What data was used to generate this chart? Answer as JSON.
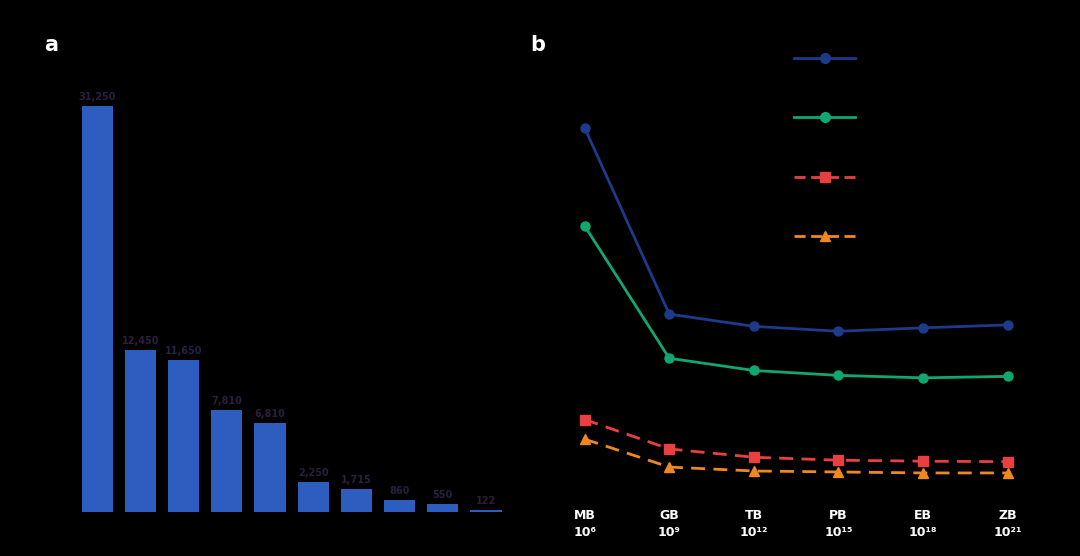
{
  "bar_values": [
    31250,
    12450,
    11650,
    7810,
    6810,
    2250,
    1715,
    860,
    550,
    122
  ],
  "bar_labels": [
    "31,250",
    "12,450",
    "11,650",
    "7,810",
    "6,810",
    "2,250",
    "1,715",
    "860",
    "550",
    "122"
  ],
  "bar_color": "#2D5EBF",
  "background_color": "#000000",
  "text_color": "#2A1F3D",
  "panel_a_label": "a",
  "panel_b_label": "b",
  "line_x_labels_top": [
    "MB",
    "GB",
    "TB",
    "PB",
    "EB",
    "ZB"
  ],
  "line_x_labels_bot": [
    "10⁶",
    "10⁹",
    "10¹²",
    "10¹⁵",
    "10¹⁸",
    "10²¹"
  ],
  "line_blue_y": [
    8.8,
    5.0,
    4.75,
    4.65,
    4.72,
    4.78
  ],
  "line_green_y": [
    6.8,
    4.1,
    3.85,
    3.75,
    3.7,
    3.73
  ],
  "line_red_y": [
    2.85,
    2.25,
    2.08,
    2.02,
    2.0,
    1.99
  ],
  "line_orange_y": [
    2.45,
    1.88,
    1.8,
    1.78,
    1.76,
    1.76
  ],
  "line_blue_color": "#1E3A8A",
  "line_green_color": "#10A870",
  "line_red_color": "#E84040",
  "line_orange_color": "#F08820",
  "ylim_low": 1.2,
  "ylim_high": 10.5
}
